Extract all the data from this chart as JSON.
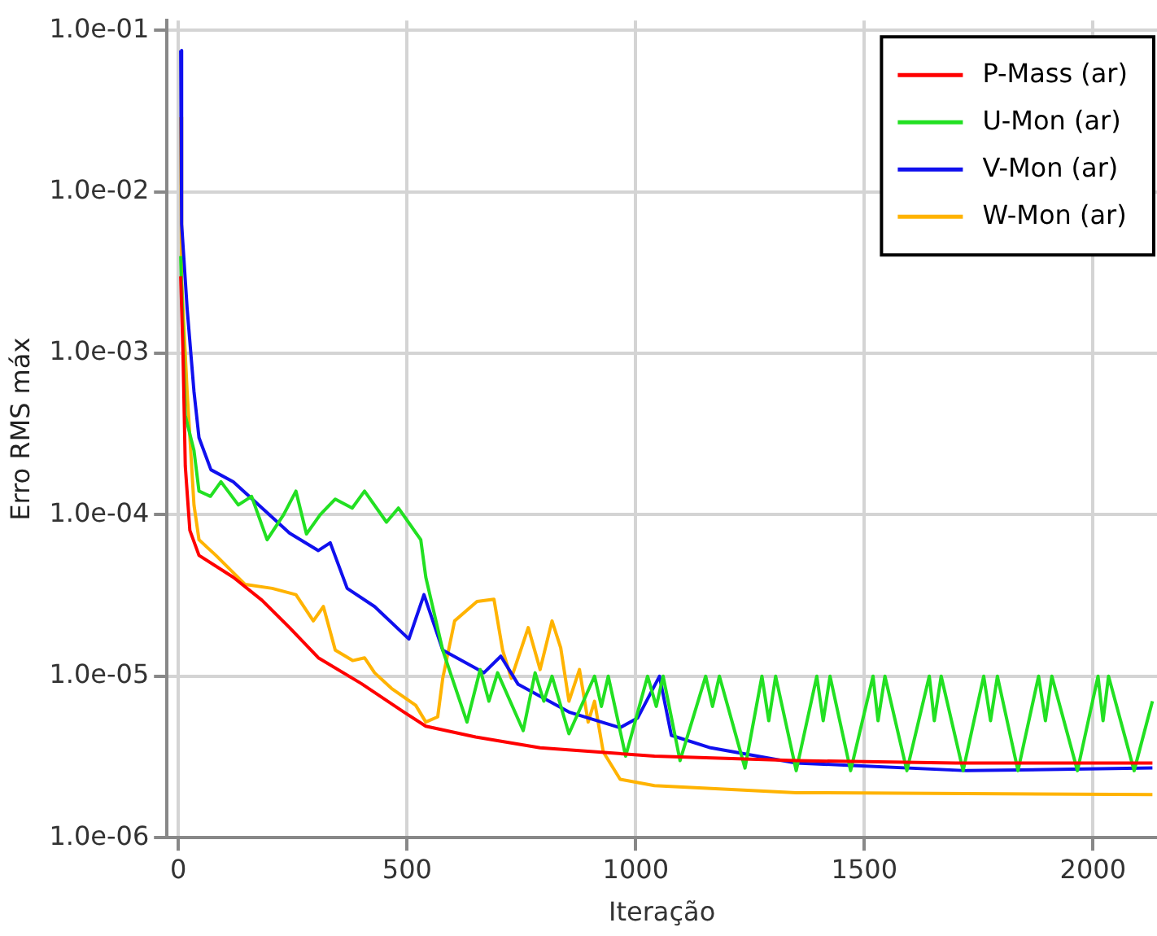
{
  "chart_data": {
    "type": "line",
    "xlabel": "Iteração",
    "ylabel": "Erro RMS máx",
    "log": "y",
    "grid": true,
    "legend": "top right",
    "marker": "none",
    "line_style": "solid",
    "xlim": [
      -25,
      2140
    ],
    "xticks": [
      0,
      500,
      1000,
      1500,
      2000
    ],
    "ylim": [
      1e-06,
      0.115
    ],
    "yticks": [
      {
        "value": 1e-06,
        "label": "1.0e-06"
      },
      {
        "value": 1e-05,
        "label": "1.0e-05"
      },
      {
        "value": 0.0001,
        "label": "1.0e-04"
      },
      {
        "value": 0.001,
        "label": "1.0e-03"
      },
      {
        "value": 0.01,
        "label": "1.0e-02"
      },
      {
        "value": 0.1,
        "label": "1.0e-01"
      }
    ],
    "series": [
      {
        "name": "P-Mass (ar)",
        "color": "#ff0000",
        "x": [
          5,
          10,
          15,
          25,
          45,
          120,
          183,
          243,
          306,
          400,
          493,
          541,
          650,
          791,
          1041,
          1351,
          1700,
          2130
        ],
        "values": [
          0.003,
          0.001,
          0.0002,
          8e-05,
          5.6e-05,
          4.1e-05,
          2.95e-05,
          2e-05,
          1.3e-05,
          9e-06,
          6e-06,
          4.9e-06,
          4.2e-06,
          3.6e-06,
          3.2e-06,
          3e-06,
          2.9e-06,
          2.9e-06
        ]
      },
      {
        "name": "U-Mon (ar)",
        "color": "#22e022",
        "x": [
          5,
          15,
          34,
          45,
          70,
          93,
          131,
          160,
          194,
          230,
          257,
          280,
          310,
          343,
          380,
          407,
          455,
          481,
          530,
          541,
          578,
          631,
          660,
          679,
          698,
          754,
          780,
          799,
          817,
          854,
          910,
          925,
          940,
          978,
          1026,
          1045,
          1060,
          1097,
          1153,
          1168,
          1183,
          1239,
          1276,
          1291,
          1306,
          1351,
          1396,
          1410,
          1425,
          1470,
          1519,
          1530,
          1545,
          1593,
          1642,
          1653,
          1668,
          1716,
          1761,
          1776,
          1791,
          1836,
          1881,
          1896,
          1910,
          1966,
          2011,
          2022,
          2034,
          2090,
          2130
        ],
        "values": [
          0.004,
          0.00041,
          0.00025,
          0.00014,
          0.00013,
          0.00016,
          0.000115,
          0.00013,
          7e-05,
          0.0001,
          0.00014,
          7.6e-05,
          0.0001,
          0.000125,
          0.00011,
          0.00014,
          9e-05,
          0.00011,
          7e-05,
          4.1e-05,
          1.45e-05,
          5.2e-06,
          1.1e-05,
          7e-06,
          1.05e-05,
          4.6e-06,
          1.05e-05,
          7e-06,
          1e-05,
          4.4e-06,
          1e-05,
          6.5e-06,
          1e-05,
          3.2e-06,
          1e-05,
          6.5e-06,
          1e-05,
          3e-06,
          1e-05,
          6.5e-06,
          1e-05,
          2.7e-06,
          1e-05,
          5.3e-06,
          1e-05,
          2.6e-06,
          1e-05,
          5.3e-06,
          1e-05,
          2.6e-06,
          1e-05,
          5.3e-06,
          1e-05,
          2.6e-06,
          1e-05,
          5.3e-06,
          1e-05,
          2.6e-06,
          1e-05,
          5.3e-06,
          1e-05,
          2.6e-06,
          1e-05,
          5.3e-06,
          1e-05,
          2.6e-06,
          1e-05,
          5.3e-06,
          1e-05,
          2.6e-06,
          7e-06
        ]
      },
      {
        "name": "V-Mon (ar)",
        "color": "#1010ee",
        "x": [
          5,
          7,
          19,
          34,
          45,
          71,
          120,
          183,
          243,
          306,
          332,
          369,
          429,
          504,
          537,
          578,
          668,
          705,
          743,
          854,
          966,
          1004,
          1052,
          1078,
          1164,
          1351,
          1474,
          1724,
          2130
        ],
        "values": [
          0.075,
          0.0063,
          0.0019,
          0.00058,
          0.0003,
          0.00019,
          0.00016,
          0.00011,
          7.7e-05,
          6e-05,
          6.7e-05,
          3.5e-05,
          2.7e-05,
          1.7e-05,
          3.2e-05,
          1.45e-05,
          1.05e-05,
          1.33e-05,
          8.9e-06,
          6e-06,
          4.8e-06,
          5.5e-06,
          1e-05,
          4.3e-06,
          3.6e-06,
          2.9e-06,
          2.8e-06,
          2.6e-06,
          2.7e-06
        ]
      },
      {
        "name": "W-Mon (ar)",
        "color": "#ffb300",
        "x": [
          5,
          7,
          19,
          34,
          45,
          82,
          146,
          205,
          257,
          295,
          317,
          343,
          381,
          407,
          429,
          466,
          519,
          541,
          567,
          578,
          604,
          653,
          690,
          709,
          728,
          765,
          791,
          817,
          836,
          854,
          877,
          896,
          910,
          929,
          966,
          1041,
          1351,
          2130
        ],
        "values": [
          0.029,
          0.0028,
          0.00058,
          0.000115,
          7e-05,
          5.6e-05,
          3.7e-05,
          3.5e-05,
          3.2e-05,
          2.2e-05,
          2.7e-05,
          1.45e-05,
          1.25e-05,
          1.3e-05,
          1.05e-05,
          8.4e-06,
          6.6e-06,
          5.2e-06,
          5.6e-06,
          9.7e-06,
          2.2e-05,
          2.9e-05,
          3e-05,
          1.45e-05,
          9.7e-06,
          2e-05,
          1.1e-05,
          2.2e-05,
          1.5e-05,
          7e-06,
          1.1e-05,
          5.2e-06,
          7e-06,
          3.4e-06,
          2.3e-06,
          2.1e-06,
          1.9e-06,
          1.85e-06
        ]
      }
    ]
  }
}
